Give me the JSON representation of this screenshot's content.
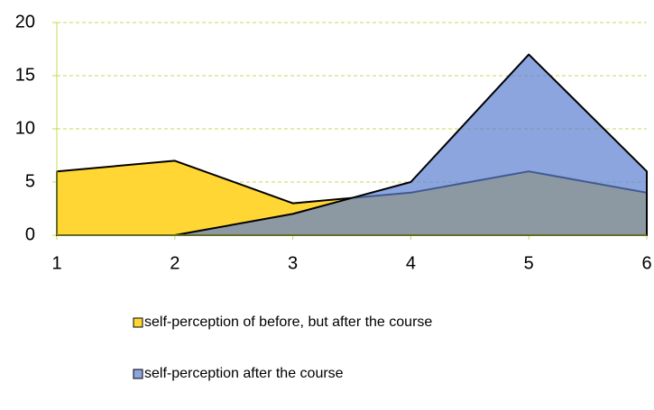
{
  "chart_data": {
    "type": "area",
    "x": [
      1,
      2,
      3,
      4,
      5,
      6
    ],
    "series": [
      {
        "name": "self-perception of before, but after the course",
        "color": "#ffd633",
        "values": [
          6,
          7,
          3,
          4,
          6,
          4
        ]
      },
      {
        "name": "self-perception after the course",
        "color": "#5b7fd1",
        "values": [
          0,
          0,
          2,
          5,
          17,
          6
        ]
      }
    ],
    "xlim": [
      1,
      6
    ],
    "xticks": [
      1,
      2,
      3,
      4,
      5,
      6
    ],
    "ylim": [
      0,
      20
    ],
    "yticks": [
      0,
      5,
      10,
      15,
      20
    ],
    "grid": true,
    "legend": "bottom"
  }
}
